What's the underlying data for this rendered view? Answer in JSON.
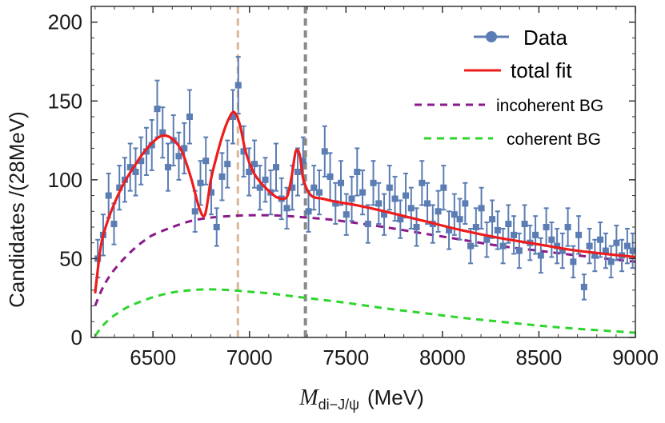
{
  "chart_data": {
    "type": "scatter",
    "xlabel": "M",
    "xlabel_sub": "di−J/ψ",
    "xlabel_unit": "(MeV)",
    "ylabel": "Candidates /(28MeV)",
    "xlim": [
      6180,
      9000
    ],
    "ylim": [
      0,
      210
    ],
    "xticks": [
      6500,
      7000,
      7500,
      8000,
      8500,
      9000
    ],
    "yticks": [
      0,
      50,
      100,
      150,
      200
    ],
    "grid": false,
    "legend_position": "top-right",
    "vlines": [
      {
        "x": 6940,
        "color": "#d9b89a"
      },
      {
        "x": 7290,
        "color": "#8a8a8a"
      }
    ],
    "series": [
      {
        "name": "Data",
        "kind": "points",
        "color": "#5b7db3",
        "x": [
          6214,
          6242,
          6270,
          6298,
          6326,
          6354,
          6382,
          6410,
          6438,
          6466,
          6494,
          6522,
          6550,
          6578,
          6606,
          6634,
          6662,
          6690,
          6718,
          6746,
          6774,
          6802,
          6830,
          6858,
          6886,
          6914,
          6942,
          6970,
          6998,
          7026,
          7054,
          7082,
          7110,
          7138,
          7166,
          7194,
          7222,
          7250,
          7278,
          7306,
          7334,
          7362,
          7390,
          7418,
          7446,
          7474,
          7502,
          7530,
          7558,
          7586,
          7614,
          7642,
          7670,
          7698,
          7726,
          7754,
          7782,
          7810,
          7838,
          7866,
          7894,
          7922,
          7950,
          7978,
          8006,
          8034,
          8062,
          8090,
          8118,
          8146,
          8174,
          8202,
          8230,
          8258,
          8286,
          8314,
          8342,
          8370,
          8398,
          8426,
          8454,
          8482,
          8510,
          8538,
          8566,
          8594,
          8622,
          8650,
          8678,
          8706,
          8734,
          8762,
          8790,
          8818,
          8846,
          8874,
          8902,
          8930,
          8958,
          8986
        ],
        "y": [
          50,
          65,
          90,
          72,
          95,
          100,
          108,
          105,
          112,
          118,
          122,
          145,
          130,
          108,
          125,
          115,
          120,
          140,
          80,
          98,
          112,
          92,
          70,
          102,
          110,
          140,
          160,
          118,
          105,
          110,
          95,
          100,
          92,
          108,
          88,
          82,
          95,
          105,
          112,
          80,
          95,
          92,
          118,
          102,
          85,
          98,
          78,
          88,
          105,
          92,
          72,
          98,
          85,
          78,
          95,
          88,
          75,
          90,
          82,
          70,
          98,
          85,
          72,
          80,
          95,
          68,
          78,
          75,
          85,
          58,
          70,
          82,
          62,
          75,
          68,
          58,
          72,
          65,
          55,
          72,
          60,
          65,
          52,
          70,
          62,
          58,
          55,
          70,
          48,
          65,
          32,
          58,
          52,
          62,
          55,
          48,
          60,
          52,
          58,
          55
        ],
        "err": [
          12,
          13,
          14,
          13,
          14,
          14,
          15,
          15,
          15,
          15,
          16,
          18,
          16,
          15,
          16,
          15,
          16,
          17,
          13,
          14,
          15,
          14,
          12,
          15,
          15,
          17,
          18,
          16,
          15,
          15,
          14,
          14,
          14,
          15,
          13,
          13,
          14,
          15,
          15,
          13,
          14,
          14,
          16,
          15,
          13,
          14,
          13,
          14,
          15,
          14,
          12,
          14,
          13,
          13,
          14,
          14,
          12,
          14,
          13,
          12,
          14,
          13,
          12,
          13,
          14,
          12,
          13,
          13,
          13,
          11,
          12,
          13,
          11,
          12,
          12,
          11,
          12,
          12,
          11,
          12,
          11,
          12,
          11,
          12,
          11,
          11,
          11,
          12,
          10,
          12,
          8,
          11,
          10,
          11,
          11,
          10,
          11,
          10,
          11,
          11
        ]
      },
      {
        "name": "total fit",
        "kind": "line",
        "color": "#ee1c1c",
        "x": [
          6200,
          6230,
          6260,
          6300,
          6350,
          6400,
          6450,
          6500,
          6550,
          6600,
          6650,
          6700,
          6740,
          6770,
          6800,
          6830,
          6860,
          6890,
          6920,
          6950,
          6980,
          7020,
          7060,
          7100,
          7140,
          7180,
          7200,
          7220,
          7240,
          7260,
          7280,
          7320,
          7380,
          7450,
          7550,
          7700,
          7900,
          8100,
          8300,
          8500,
          8700,
          9000
        ],
        "y": [
          28,
          58,
          72,
          85,
          98,
          108,
          117,
          124,
          128,
          126,
          118,
          100,
          82,
          78,
          100,
          115,
          128,
          138,
          143,
          135,
          118,
          105,
          98,
          93,
          89,
          88,
          91,
          103,
          118,
          116,
          100,
          90,
          88,
          86,
          84,
          80,
          74,
          68,
          63,
          59,
          55,
          51
        ]
      },
      {
        "name": "incoherent BG",
        "kind": "line",
        "dashed": true,
        "color": "#8b1a8b",
        "x": [
          6200,
          6230,
          6260,
          6300,
          6350,
          6400,
          6450,
          6500,
          6600,
          6700,
          6800,
          6900,
          7000,
          7100,
          7200,
          7300,
          7400,
          7500,
          7700,
          7900,
          8100,
          8300,
          8500,
          8700,
          9000
        ],
        "y": [
          20,
          29,
          36,
          43,
          50,
          56,
          61,
          65,
          70,
          74,
          76,
          77,
          77.5,
          77.5,
          77,
          76,
          75,
          73.5,
          70,
          66,
          62,
          58,
          55,
          52,
          48
        ]
      },
      {
        "name": "coherent BG",
        "kind": "line",
        "dashed": true,
        "color": "#2dd52d",
        "x": [
          6200,
          6230,
          6260,
          6300,
          6350,
          6400,
          6500,
          6600,
          6700,
          6800,
          6900,
          7000,
          7100,
          7200,
          7300,
          7400,
          7500,
          7700,
          7900,
          8100,
          8300,
          8500,
          8700,
          9000
        ],
        "y": [
          1,
          6,
          10,
          14,
          18,
          21,
          25.5,
          28.5,
          30,
          30.5,
          30,
          29,
          28,
          26.5,
          25,
          23.5,
          22,
          18.5,
          15.5,
          12.5,
          10,
          7.5,
          5.5,
          3
        ]
      }
    ]
  }
}
